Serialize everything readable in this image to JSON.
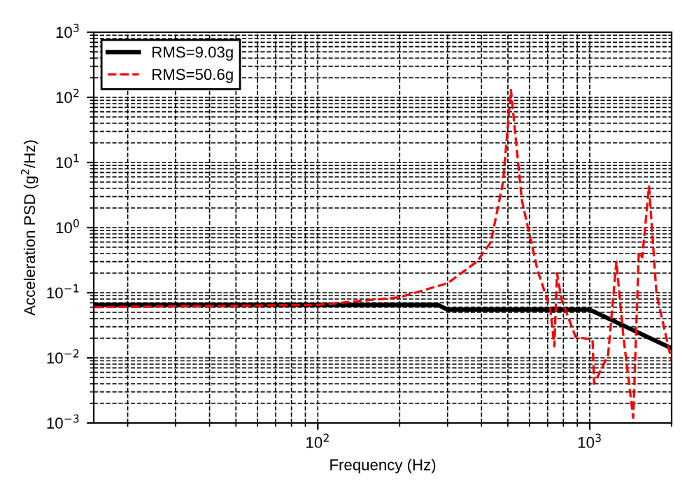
{
  "chart_data": {
    "type": "line",
    "xlabel": "Frequency (Hz)",
    "ylabel": "Acceleration PSD (g$^{2}$/Hz)",
    "log": "xy",
    "grid": true,
    "legend": "top left",
    "xlim": [
      15,
      2000
    ],
    "xticks": [
      {
        "value": 100,
        "label": "10$^{2}$"
      },
      {
        "value": 1000,
        "label": "10$^{3}$"
      }
    ],
    "ylim": [
      0.001,
      1000
    ],
    "yticks": [
      {
        "value": 0.001,
        "label": "10$^{−3}$"
      },
      {
        "value": 0.01,
        "label": "10$^{−2}$"
      },
      {
        "value": 0.1,
        "label": "10$^{−1}$"
      },
      {
        "value": 1,
        "label": "10$^{0}$"
      },
      {
        "value": 10,
        "label": "10$^{1}$"
      },
      {
        "value": 100,
        "label": "10$^{2}$"
      },
      {
        "value": 1000,
        "label": "10$^{3}$"
      }
    ],
    "series": [
      {
        "name": "RMS=9.03g",
        "color": "#000000",
        "line_style": "solid",
        "x": [
          15,
          277,
          300,
          1000,
          2000
        ],
        "values": [
          0.065,
          0.065,
          0.055,
          0.055,
          0.014
        ]
      },
      {
        "name": "RMS=50.6g",
        "color": "#ff0000",
        "line_style": "dashed",
        "x": [
          15,
          100,
          200,
          300,
          385,
          433,
          480,
          513,
          563,
          643,
          716,
          741,
          758,
          787,
          887,
          1024,
          1038,
          1168,
          1253,
          1330,
          1445,
          1515,
          1560,
          1652,
          1760,
          2000
        ],
        "values": [
          0.06,
          0.065,
          0.085,
          0.14,
          0.3,
          0.6,
          5,
          130,
          2.6,
          0.22,
          0.057,
          0.015,
          0.2,
          0.08,
          0.021,
          0.019,
          0.004,
          0.011,
          0.3,
          0.021,
          0.0012,
          0.42,
          0.35,
          4.3,
          0.095,
          0.009
        ]
      }
    ]
  }
}
